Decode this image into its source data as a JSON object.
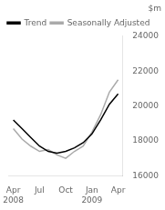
{
  "chart_data": {
    "type": "line",
    "title": "$m",
    "categories": [
      "Apr\n2008",
      null,
      null,
      "Jul",
      null,
      null,
      "Oct",
      null,
      null,
      "Jan\n2009",
      null,
      null,
      "Apr"
    ],
    "series": [
      {
        "name": "Trend",
        "color": "#000000",
        "values": [
          19200,
          18700,
          18200,
          17700,
          17400,
          17300,
          17400,
          17600,
          17900,
          18400,
          19200,
          20100,
          20700
        ]
      },
      {
        "name": "Seasonally Adjusted",
        "color": "#aaaaaa",
        "values": [
          18700,
          18100,
          17700,
          17400,
          17500,
          17200,
          17000,
          17400,
          17700,
          18500,
          19500,
          20800,
          21500
        ]
      }
    ],
    "ylim": [
      16000,
      24000
    ],
    "yticks": [
      16000,
      18000,
      20000,
      22000,
      24000
    ],
    "grid": false,
    "legend": "upper left"
  }
}
